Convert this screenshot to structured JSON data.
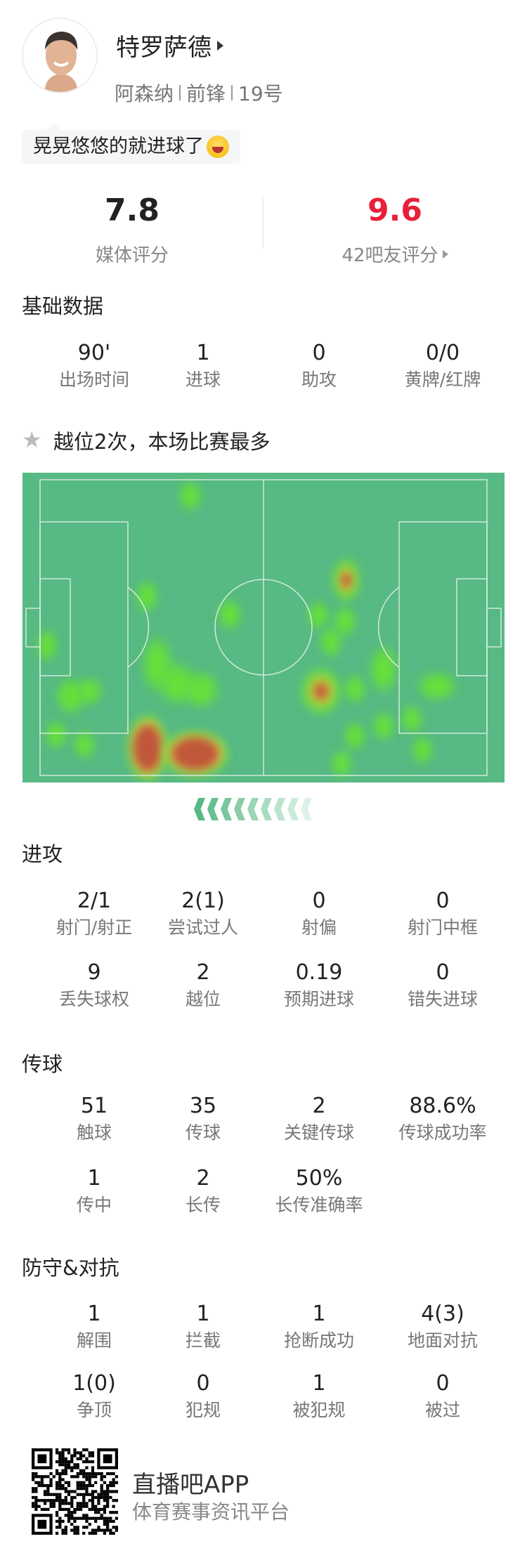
{
  "player": {
    "name": "特罗萨德",
    "team": "阿森纳",
    "position": "前锋",
    "number": "19号",
    "comment": "晃晃悠悠的就进球了",
    "emoji": "laughing-tears-emoji"
  },
  "ratings": {
    "media": {
      "value": "7.8",
      "label": "媒体评分"
    },
    "fans": {
      "value": "9.6",
      "label": "42吧友评分",
      "color": "#e8203a"
    }
  },
  "basic": {
    "title": "基础数据",
    "items": [
      {
        "v": "90'",
        "l": "出场时间"
      },
      {
        "v": "1",
        "l": "进球"
      },
      {
        "v": "0",
        "l": "助攻"
      },
      {
        "v": "0/0",
        "l": "黄牌/红牌"
      }
    ]
  },
  "highlight": {
    "icon": "star-icon",
    "text": "越位2次，本场比赛最多"
  },
  "heatmap": {
    "pitch_color": "#57b983",
    "attack_direction": "left"
  },
  "attack": {
    "title": "进攻",
    "rows": [
      [
        {
          "v": "2/1",
          "l": "射门/射正"
        },
        {
          "v": "2(1)",
          "l": "尝试过人"
        },
        {
          "v": "0",
          "l": "射偏"
        },
        {
          "v": "0",
          "l": "射门中框"
        }
      ],
      [
        {
          "v": "9",
          "l": "丢失球权"
        },
        {
          "v": "2",
          "l": "越位"
        },
        {
          "v": "0.19",
          "l": "预期进球"
        },
        {
          "v": "0",
          "l": "错失进球"
        }
      ]
    ]
  },
  "passing": {
    "title": "传球",
    "rows": [
      [
        {
          "v": "51",
          "l": "触球"
        },
        {
          "v": "35",
          "l": "传球"
        },
        {
          "v": "2",
          "l": "关键传球"
        },
        {
          "v": "88.6%",
          "l": "传球成功率"
        }
      ],
      [
        {
          "v": "1",
          "l": "传中"
        },
        {
          "v": "2",
          "l": "长传"
        },
        {
          "v": "50%",
          "l": "长传准确率"
        }
      ]
    ]
  },
  "defense": {
    "title": "防守&对抗",
    "rows": [
      [
        {
          "v": "1",
          "l": "解围"
        },
        {
          "v": "1",
          "l": "拦截"
        },
        {
          "v": "1",
          "l": "抢断成功"
        },
        {
          "v": "4(3)",
          "l": "地面对抗"
        }
      ],
      [
        {
          "v": "1(0)",
          "l": "争顶"
        },
        {
          "v": "0",
          "l": "犯规"
        },
        {
          "v": "1",
          "l": "被犯规"
        },
        {
          "v": "0",
          "l": "被过"
        }
      ]
    ]
  },
  "footer": {
    "app": "直播吧APP",
    "tagline": "体育赛事资讯平台"
  }
}
